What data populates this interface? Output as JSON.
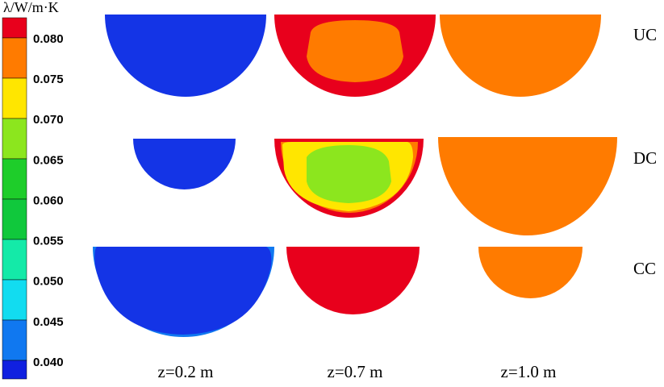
{
  "colorbar": {
    "title": "λ/W/m·K",
    "ticks": [
      "0.080",
      "0.075",
      "0.070",
      "0.065",
      "0.060",
      "0.055",
      "0.050",
      "0.045",
      "0.040"
    ]
  },
  "rows": [
    "UC",
    "DC",
    "CC"
  ],
  "columns": [
    "z=0.2 m",
    "z=0.7 m",
    "z=1.0 m"
  ]
}
